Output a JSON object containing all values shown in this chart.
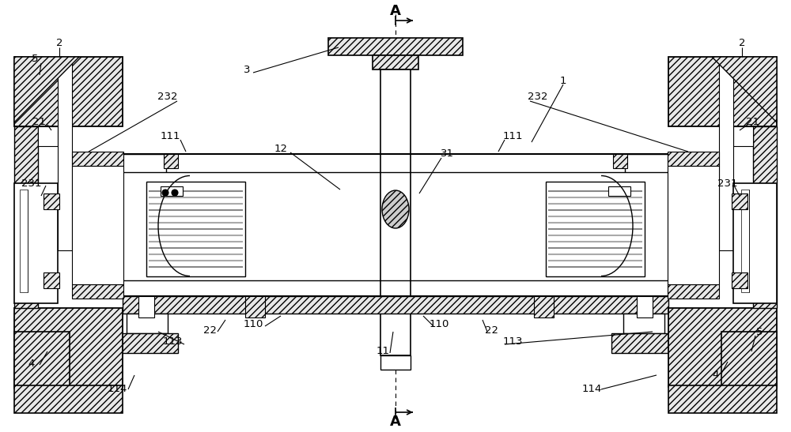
{
  "fig_width": 10.0,
  "fig_height": 5.47,
  "dpi": 100,
  "bg_color": "#ffffff",
  "line_color": "#000000"
}
